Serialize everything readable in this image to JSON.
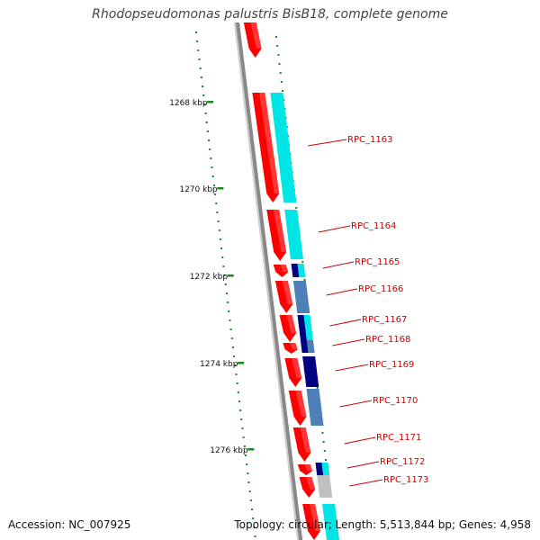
{
  "title": "Rhodopseudomonas palustris BisB18, complete genome",
  "footer": {
    "accession": "Accession: NC_007925",
    "summary": "Topology: circular; Length: 5,513,844 bp; Genes: 4,958"
  },
  "colors": {
    "backbone": "#888888",
    "tick": "#1a8a1a",
    "forward_gene": "#ff0000",
    "label": "#cc0000",
    "cyan_domain": "#00e5e5",
    "steelblue_domain": "#4f7fb8",
    "navy_domain": "#000080",
    "gray_domain": "#c0c0c0"
  },
  "scale_labels": [
    "1268 kbp",
    "1270 kbp",
    "1272 kbp",
    "1274 kbp",
    "1276 kbp"
  ],
  "genes": [
    {
      "label": "RPC_1163",
      "domain_color": "cyan"
    },
    {
      "label": "RPC_1164",
      "domain_color": "cyan"
    },
    {
      "label": "RPC_1165",
      "domain_color": "navy+cyan"
    },
    {
      "label": "RPC_1166",
      "domain_color": "steelblue"
    },
    {
      "label": "RPC_1167",
      "domain_color": "navy+cyan"
    },
    {
      "label": "RPC_1168",
      "domain_color": "navy+steelblue"
    },
    {
      "label": "RPC_1169",
      "domain_color": "navy"
    },
    {
      "label": "RPC_1170",
      "domain_color": "steelblue"
    },
    {
      "label": "RPC_1171",
      "domain_color": "none"
    },
    {
      "label": "RPC_1172",
      "domain_color": "navy+cyan"
    },
    {
      "label": "RPC_1173",
      "domain_color": "gray"
    }
  ]
}
